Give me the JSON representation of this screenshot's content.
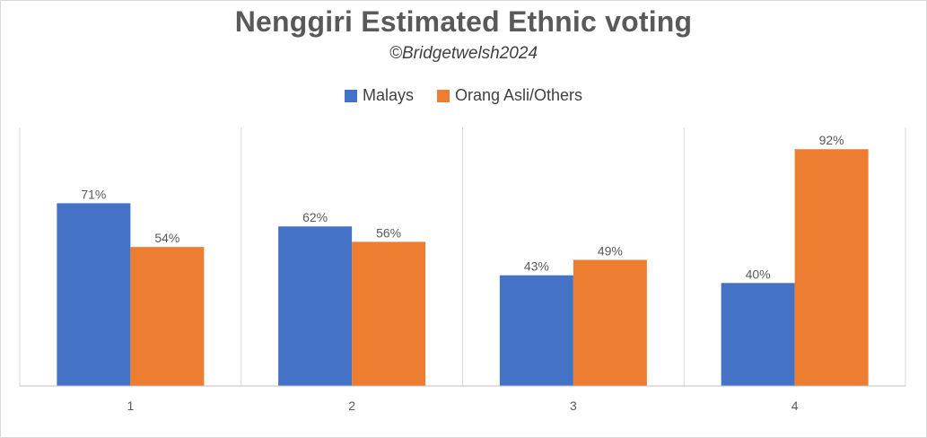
{
  "chart_data": {
    "type": "bar",
    "title": "Nenggiri  Estimated Ethnic voting",
    "subtitle": "©Bridgetwelsh2024",
    "categories": [
      "1",
      "2",
      "3",
      "4"
    ],
    "series": [
      {
        "name": "Malays",
        "color": "#4472c4",
        "values": [
          71,
          62,
          43,
          40
        ],
        "labels": [
          "71%",
          "62%",
          "43%",
          "40%"
        ]
      },
      {
        "name": "Orang Asli/Others",
        "color": "#ed7d31",
        "values": [
          54,
          56,
          49,
          92
        ],
        "labels": [
          "54%",
          "56%",
          "49%",
          "92%"
        ]
      }
    ],
    "xlabel": "",
    "ylabel": "",
    "ylim": [
      0,
      100
    ],
    "grid": "vertical separators",
    "legend": "top-center"
  }
}
